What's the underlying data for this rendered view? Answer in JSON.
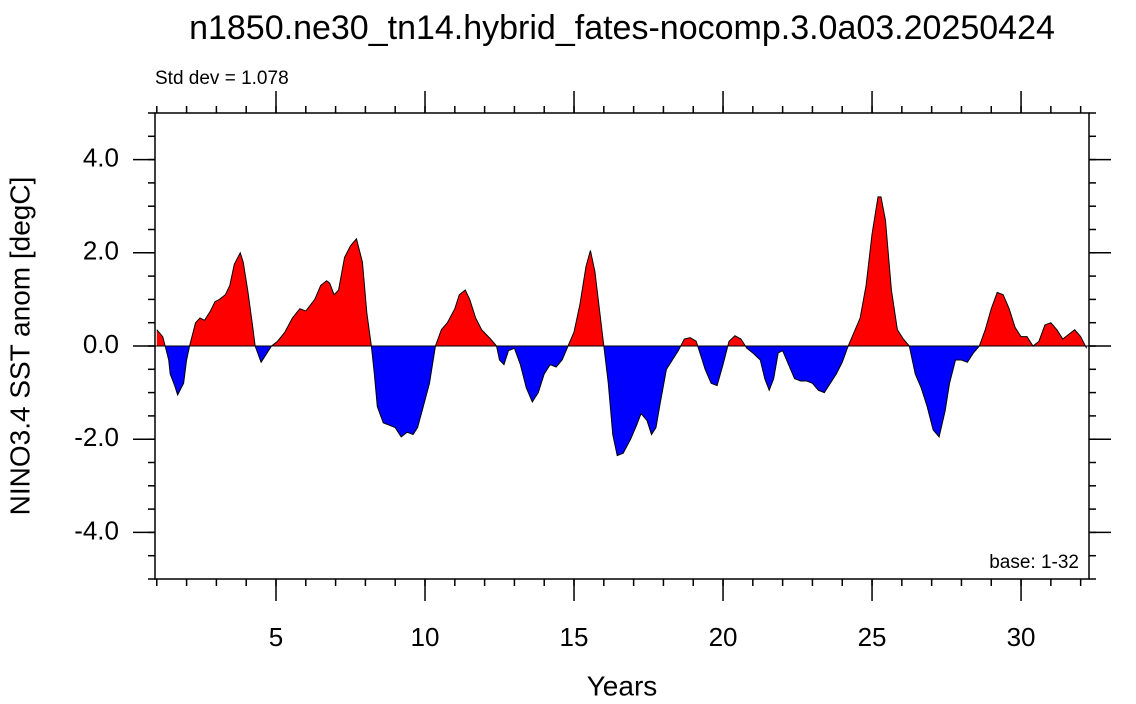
{
  "chart_data": {
    "type": "area",
    "title": "n1850.ne30_tn14.hybrid_fates-nocomp.3.0a03.20250424",
    "subtitle": "Std dev = 1.078",
    "annotation": "base: 1-32",
    "x_label": "Years",
    "y_label": "NINO3.4 SST anom [degC]",
    "positive_color": "#ff0000",
    "negative_color": "#0000ff",
    "xlim": [
      0.94,
      32.28
    ],
    "ylim": [
      -5,
      5
    ],
    "xticks": [
      5,
      10,
      15,
      20,
      25,
      30
    ],
    "yticks": [
      {
        "value": -4,
        "label": "-4.0"
      },
      {
        "value": -2,
        "label": "-2.0"
      },
      {
        "value": 0,
        "label": "0.0"
      },
      {
        "value": 2,
        "label": "2.0"
      },
      {
        "value": 4,
        "label": "4.0"
      }
    ],
    "x_minor_step": 1,
    "y_minor_step": 0.5,
    "x": [
      1.0,
      1.2,
      1.4,
      1.45,
      1.6,
      1.7,
      1.9,
      2.0,
      2.1,
      2.3,
      2.45,
      2.6,
      2.8,
      2.95,
      3.1,
      3.3,
      3.45,
      3.6,
      3.8,
      3.9,
      4.05,
      4.2,
      4.3,
      4.5,
      4.65,
      4.85,
      5.05,
      5.3,
      5.55,
      5.8,
      6.0,
      6.3,
      6.5,
      6.7,
      6.8,
      6.95,
      7.1,
      7.3,
      7.5,
      7.7,
      7.9,
      8.05,
      8.2,
      8.3,
      8.4,
      8.6,
      8.8,
      9.0,
      9.2,
      9.4,
      9.6,
      9.75,
      9.9,
      10.15,
      10.35,
      10.55,
      10.75,
      11.0,
      11.15,
      11.35,
      11.5,
      11.7,
      11.9,
      12.2,
      12.4,
      12.5,
      12.65,
      12.8,
      13.0,
      13.2,
      13.4,
      13.6,
      13.8,
      14.0,
      14.2,
      14.4,
      14.6,
      14.8,
      15.0,
      15.2,
      15.4,
      15.55,
      15.7,
      15.85,
      16.0,
      16.15,
      16.3,
      16.45,
      16.65,
      16.9,
      17.1,
      17.25,
      17.45,
      17.6,
      17.75,
      17.9,
      18.1,
      18.3,
      18.5,
      18.7,
      18.9,
      19.1,
      19.2,
      19.4,
      19.6,
      19.8,
      20.0,
      20.2,
      20.4,
      20.6,
      20.8,
      21.0,
      21.25,
      21.4,
      21.55,
      21.7,
      21.85,
      22.0,
      22.2,
      22.4,
      22.6,
      22.8,
      23.0,
      23.2,
      23.4,
      23.6,
      23.8,
      24.0,
      24.2,
      24.4,
      24.6,
      24.8,
      25.0,
      25.2,
      25.3,
      25.45,
      25.65,
      25.85,
      26.05,
      26.25,
      26.45,
      26.65,
      26.85,
      27.05,
      27.25,
      27.45,
      27.6,
      27.8,
      28.0,
      28.2,
      28.4,
      28.6,
      28.8,
      29.0,
      29.2,
      29.4,
      29.6,
      29.8,
      30.0,
      30.2,
      30.4,
      30.6,
      30.8,
      31.0,
      31.2,
      31.4,
      31.6,
      31.8,
      32.0,
      32.2
    ],
    "values": [
      0.35,
      0.2,
      -0.3,
      -0.6,
      -0.85,
      -1.05,
      -0.8,
      -0.3,
      0.0,
      0.5,
      0.6,
      0.55,
      0.75,
      0.95,
      1.0,
      1.1,
      1.3,
      1.75,
      2.0,
      1.8,
      1.2,
      0.5,
      0.0,
      -0.35,
      -0.2,
      0.0,
      0.1,
      0.3,
      0.6,
      0.8,
      0.75,
      1.0,
      1.3,
      1.4,
      1.35,
      1.1,
      1.2,
      1.9,
      2.15,
      2.3,
      1.8,
      0.7,
      0.0,
      -0.6,
      -1.3,
      -1.65,
      -1.7,
      -1.75,
      -1.95,
      -1.85,
      -1.9,
      -1.75,
      -1.4,
      -0.8,
      0.0,
      0.35,
      0.5,
      0.8,
      1.1,
      1.2,
      1.0,
      0.6,
      0.35,
      0.15,
      0.0,
      -0.3,
      -0.4,
      -0.1,
      -0.05,
      -0.4,
      -0.9,
      -1.2,
      -1.0,
      -0.6,
      -0.4,
      -0.45,
      -0.3,
      0.0,
      0.3,
      0.9,
      1.7,
      2.05,
      1.6,
      0.8,
      0.0,
      -0.8,
      -1.9,
      -2.35,
      -2.3,
      -2.0,
      -1.7,
      -1.45,
      -1.6,
      -1.9,
      -1.75,
      -1.2,
      -0.5,
      -0.3,
      -0.1,
      0.15,
      0.18,
      0.1,
      -0.1,
      -0.5,
      -0.8,
      -0.85,
      -0.4,
      0.1,
      0.22,
      0.15,
      -0.05,
      -0.15,
      -0.3,
      -0.7,
      -0.95,
      -0.7,
      -0.15,
      -0.1,
      -0.4,
      -0.7,
      -0.75,
      -0.75,
      -0.8,
      -0.95,
      -1.0,
      -0.8,
      -0.6,
      -0.35,
      0.0,
      0.3,
      0.6,
      1.3,
      2.4,
      3.2,
      3.2,
      2.7,
      1.2,
      0.35,
      0.15,
      0.0,
      -0.6,
      -0.9,
      -1.3,
      -1.8,
      -1.95,
      -1.4,
      -0.8,
      -0.3,
      -0.3,
      -0.35,
      -0.15,
      0.0,
      0.35,
      0.8,
      1.15,
      1.1,
      0.8,
      0.4,
      0.2,
      0.2,
      0.0,
      0.1,
      0.45,
      0.5,
      0.35,
      0.15,
      0.25,
      0.35,
      0.2,
      -0.05
    ]
  }
}
